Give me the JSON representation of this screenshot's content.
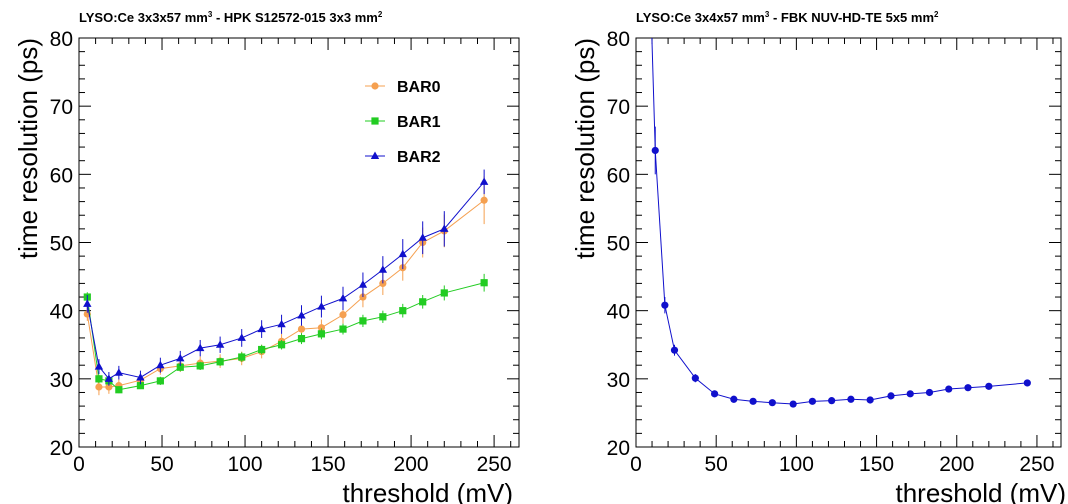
{
  "chart_data": [
    {
      "type": "line",
      "title": {
        "pre": "LYSO:Ce 3x3x57 mm",
        "sup1": "3",
        "mid": " - HPK S12572-015 3x3 mm",
        "sup2": "2"
      },
      "xlabel": "threshold (mV)",
      "ylabel": "time resolution (ps)",
      "xlim": [
        0,
        265
      ],
      "ylim": [
        20,
        80
      ],
      "xticks": [
        0,
        50,
        100,
        150,
        200,
        250
      ],
      "yticks": [
        20,
        30,
        40,
        50,
        60,
        70,
        80
      ],
      "grid": false,
      "legend_position": "upper-center",
      "series": [
        {
          "name": "BAR0",
          "color": "#f5a050",
          "marker": "circle",
          "x": [
            5,
            12,
            18,
            24,
            37,
            49,
            61,
            73,
            85,
            98,
            110,
            122,
            134,
            146,
            159,
            171,
            183,
            195,
            207,
            220,
            244
          ],
          "y": [
            39.5,
            28.8,
            28.8,
            29.0,
            29.8,
            31.5,
            31.9,
            32.3,
            32.6,
            33.0,
            34.0,
            35.5,
            37.3,
            37.5,
            39.4,
            42.0,
            44.0,
            46.3,
            50.0,
            51.7,
            56.2
          ],
          "err": [
            1.0,
            1.2,
            1.0,
            0.9,
            0.8,
            0.9,
            0.9,
            1.0,
            1.0,
            1.0,
            1.0,
            1.1,
            1.1,
            1.2,
            1.3,
            1.5,
            1.7,
            1.9,
            2.2,
            2.4,
            3.5
          ]
        },
        {
          "name": "BAR1",
          "color": "#22cc22",
          "marker": "square",
          "x": [
            5,
            12,
            18,
            24,
            37,
            49,
            61,
            73,
            85,
            98,
            110,
            122,
            134,
            146,
            159,
            171,
            183,
            195,
            207,
            220,
            244
          ],
          "y": [
            42.0,
            30.0,
            29.7,
            28.4,
            29.0,
            29.7,
            31.7,
            31.9,
            32.5,
            33.2,
            34.3,
            35.0,
            35.9,
            36.6,
            37.3,
            38.5,
            39.1,
            40.0,
            41.3,
            42.6,
            44.1
          ],
          "err": [
            0.7,
            0.6,
            0.5,
            0.5,
            0.5,
            0.6,
            0.6,
            0.6,
            0.6,
            0.7,
            0.7,
            0.7,
            0.8,
            0.8,
            0.8,
            0.9,
            0.9,
            1.0,
            1.0,
            1.1,
            1.3
          ]
        },
        {
          "name": "BAR2",
          "color": "#1010cc",
          "marker": "triangle",
          "x": [
            5,
            12,
            18,
            24,
            37,
            49,
            61,
            73,
            85,
            98,
            110,
            122,
            134,
            146,
            159,
            171,
            183,
            195,
            207,
            220,
            244
          ],
          "y": [
            41.0,
            31.8,
            30.0,
            30.9,
            30.2,
            32.0,
            33.0,
            34.5,
            35.0,
            36.0,
            37.3,
            38.0,
            39.3,
            40.6,
            41.8,
            43.8,
            46.0,
            48.3,
            50.7,
            52.0,
            58.9
          ],
          "err": [
            1.3,
            1.1,
            1.0,
            1.0,
            1.0,
            1.1,
            1.1,
            1.2,
            1.2,
            1.3,
            1.3,
            1.4,
            1.5,
            1.6,
            1.7,
            1.8,
            2.0,
            2.2,
            2.4,
            2.6,
            1.8
          ]
        }
      ]
    },
    {
      "type": "line",
      "title": {
        "pre": "LYSO:Ce 3x4x57 mm",
        "sup1": "3",
        "mid": " - FBK NUV-HD-TE 5x5 mm",
        "sup2": "2"
      },
      "xlabel": "threshold (mV)",
      "ylabel": "time resolution (ps)",
      "xlim": [
        0,
        265
      ],
      "ylim": [
        20,
        80
      ],
      "xticks": [
        0,
        50,
        100,
        150,
        200,
        250
      ],
      "yticks": [
        20,
        30,
        40,
        50,
        60,
        70,
        80
      ],
      "grid": false,
      "series": [
        {
          "name": "",
          "color": "#1010cc",
          "marker": "circle",
          "x": [
            8,
            12,
            18,
            24,
            37,
            49,
            61,
            73,
            85,
            98,
            110,
            122,
            134,
            146,
            159,
            171,
            183,
            195,
            207,
            220,
            244
          ],
          "y": [
            95.0,
            63.5,
            40.8,
            34.2,
            30.1,
            27.8,
            27.0,
            26.7,
            26.5,
            26.3,
            26.7,
            26.8,
            27.0,
            26.9,
            27.5,
            27.8,
            28.0,
            28.5,
            28.7,
            28.9,
            29.4
          ],
          "err": [
            0,
            3.5,
            1.2,
            0.8,
            0.6,
            0.5,
            0.5,
            0.4,
            0.4,
            0.4,
            0.4,
            0.4,
            0.4,
            0.4,
            0.4,
            0.4,
            0.4,
            0.5,
            0.5,
            0.5,
            0.5
          ]
        }
      ]
    }
  ]
}
